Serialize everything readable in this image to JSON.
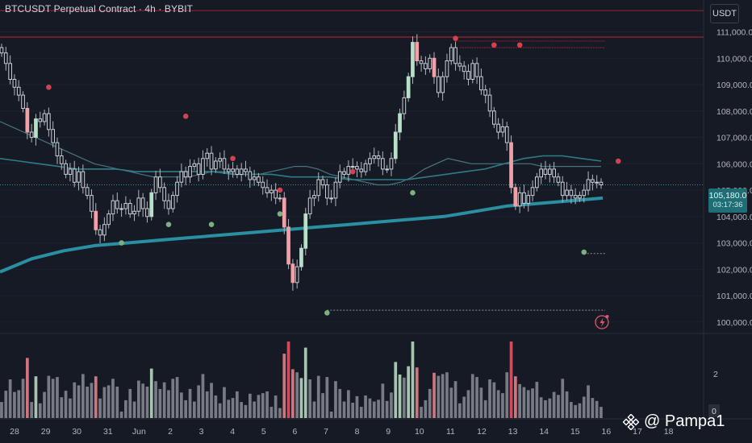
{
  "header": {
    "title": "BTCUSDT Perpetual Contract · 4h · BYBIT",
    "currency": "USDT"
  },
  "price_label": {
    "price": "105,180.0",
    "countdown": "03:17:36"
  },
  "watermark": {
    "text": "@ Pampa1"
  },
  "colors": {
    "background": "#161a25",
    "up_candle": "#b8dfc8",
    "down_candle": "#f2a0a8",
    "wick": "#b2b5be",
    "ma_thick": "#2a8fa0",
    "ma_thin": "#4e7f88",
    "resistance": "#7a2230",
    "swing_high": "#d24352",
    "swing_low": "#7cb07f",
    "volume_neutral": "#8a8d96",
    "volume_up": "#bfe3c9",
    "volume_down": "#f0868f",
    "volume_strong_down": "#f0566a"
  },
  "chart_data": {
    "type": "candlestick",
    "title": "BTCUSDT Perpetual Contract · 4h · BYBIT",
    "ylim": [
      99600,
      111900
    ],
    "y_ticks": [
      100000,
      101000,
      102000,
      103000,
      104000,
      105000,
      106000,
      107000,
      108000,
      109000,
      110000,
      111000
    ],
    "y_tick_labels": [
      "100,000.0",
      "101,000.0",
      "102,000.0",
      "103,000.0",
      "104,000.0",
      "105,000.0",
      "106,000.0",
      "107,000.0",
      "108,000.0",
      "109,000.0",
      "110,000.0",
      "111,000.0"
    ],
    "x_tick_labels": [
      "28",
      "29",
      "30",
      "31",
      "Jun",
      "2",
      "3",
      "4",
      "5",
      "6",
      "7",
      "8",
      "9",
      "10",
      "11",
      "12",
      "13",
      "14",
      "15",
      "16",
      "17",
      "18"
    ],
    "candle_closes": [
      110200,
      109800,
      109200,
      108900,
      108600,
      108100,
      107200,
      107000,
      107700,
      107600,
      107900,
      107300,
      106800,
      106300,
      106000,
      105600,
      105800,
      105300,
      105700,
      105100,
      104800,
      104200,
      103500,
      103300,
      103700,
      104100,
      104600,
      104300,
      104300,
      104500,
      104100,
      104200,
      104700,
      104300,
      104000,
      104900,
      105500,
      105100,
      104600,
      104300,
      104800,
      105300,
      105700,
      105500,
      105900,
      106000,
      105600,
      106200,
      106400,
      105800,
      106100,
      106200,
      105800,
      105700,
      105800,
      105600,
      105800,
      105700,
      105400,
      105500,
      105300,
      105100,
      104900,
      105000,
      104700,
      104700,
      103600,
      102200,
      101500,
      102100,
      102800,
      104100,
      104700,
      104800,
      105400,
      105200,
      104700,
      104700,
      105300,
      105700,
      105600,
      105900,
      105900,
      105800,
      105700,
      106000,
      106200,
      106300,
      106200,
      105800,
      105800,
      106200,
      107200,
      107900,
      108500,
      109300,
      110600,
      109900,
      109800,
      109600,
      110000,
      109300,
      108700,
      109300,
      109900,
      110400,
      109800,
      109700,
      109500,
      109200,
      109800,
      109300,
      108800,
      108600,
      108000,
      107500,
      107200,
      107400,
      106800,
      105100,
      104400,
      104900,
      104500,
      104800,
      105100,
      105500,
      105800,
      105600,
      105800,
      105500,
      105300,
      104800,
      105000,
      104800,
      104700,
      104800,
      105000,
      105400,
      105300,
      105300,
      105200
    ],
    "ma_fast": [
      107600,
      107400,
      107200,
      107000,
      106800,
      106600,
      106400,
      106200,
      106000,
      105900,
      105800,
      105700,
      105600,
      105500,
      105500,
      105500,
      105500,
      105600,
      105700,
      105700,
      105600,
      105600,
      105600,
      105700,
      105800,
      105900,
      105900,
      105800,
      105600,
      105500,
      105400,
      105300,
      105200,
      105200,
      105300,
      105500,
      105800,
      106000,
      106200,
      106100,
      106000,
      106000,
      106000,
      106000,
      106000,
      106000,
      105900,
      105900,
      105900,
      105900,
      105900,
      105900
    ],
    "ma_mid": [
      106200,
      106100,
      106000,
      105900,
      105800,
      105800,
      105800,
      105700,
      105700,
      105700,
      105700,
      105700,
      105600,
      105600,
      105600,
      105500,
      105500,
      105500,
      105400,
      105400,
      105400,
      105400,
      105500,
      105600,
      105700,
      105800,
      106000,
      106200,
      106300,
      106300,
      106200,
      106100
    ],
    "ma_slow": [
      101900,
      102400,
      102700,
      102900,
      103000,
      103100,
      103200,
      103300,
      103400,
      103500,
      103600,
      103700,
      103800,
      103900,
      104000,
      104200,
      104400,
      104500,
      104600,
      104700
    ],
    "resistance_levels": [
      111800,
      110800,
      110650,
      110400
    ],
    "support_levels": [
      102600,
      100450
    ],
    "swing_highs": [
      [
        11,
        108900
      ],
      [
        43,
        107800
      ],
      [
        54,
        106200
      ],
      [
        65,
        105000
      ],
      [
        82,
        105700
      ],
      [
        106,
        110750
      ],
      [
        115,
        110500
      ],
      [
        121,
        110500
      ],
      [
        144,
        106100
      ]
    ],
    "swing_lows": [
      [
        28,
        103000
      ],
      [
        39,
        103700
      ],
      [
        49,
        103700
      ],
      [
        65,
        104100
      ],
      [
        76,
        100350
      ],
      [
        96,
        104900
      ],
      [
        136,
        102650
      ]
    ],
    "volume_axis_ticks": [
      "2",
      "0"
    ]
  }
}
